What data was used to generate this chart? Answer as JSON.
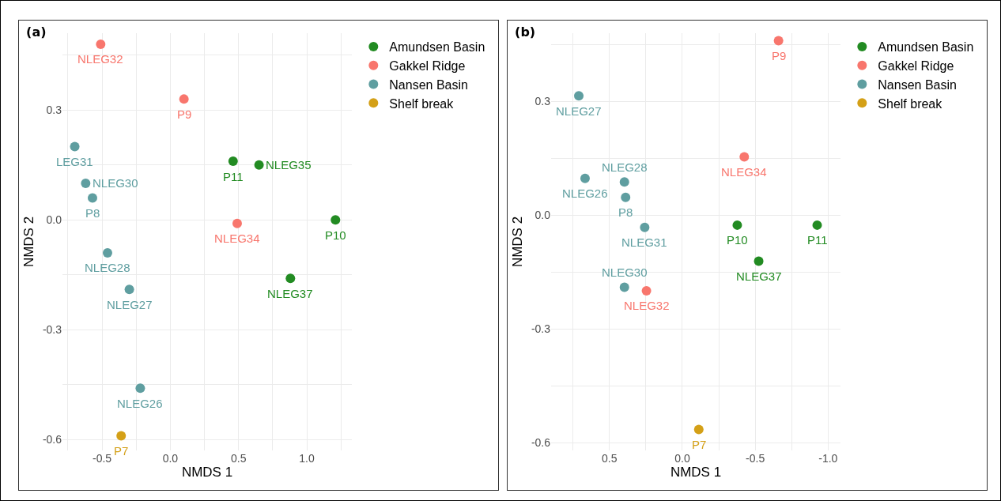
{
  "chart_data": [
    {
      "type": "scatter",
      "title": "(a)",
      "xlabel": "NMDS 1",
      "ylabel": "NMDS 2",
      "legend": "top right",
      "grid": true,
      "marker": "circle",
      "xlim": [
        -0.79,
        1.33
      ],
      "ylim": [
        -0.63,
        0.51
      ],
      "xticks": [
        {
          "value": -0.75,
          "label": null
        },
        {
          "value": -0.5,
          "label": "-0.5"
        },
        {
          "value": -0.25,
          "label": null
        },
        {
          "value": 0,
          "label": "0.0"
        },
        {
          "value": 0.25,
          "label": null
        },
        {
          "value": 0.5,
          "label": "0.5"
        },
        {
          "value": 0.75,
          "label": null
        },
        {
          "value": 1,
          "label": "1.0"
        },
        {
          "value": 1.25,
          "label": null
        }
      ],
      "yticks": [
        {
          "value": -0.6,
          "label": "-0.6"
        },
        {
          "value": -0.45,
          "label": null
        },
        {
          "value": -0.3,
          "label": "-0.3"
        },
        {
          "value": -0.15,
          "label": null
        },
        {
          "value": 0,
          "label": "0.0"
        },
        {
          "value": 0.15,
          "label": null
        },
        {
          "value": 0.3,
          "label": "0.3"
        },
        {
          "value": 0.45,
          "label": null
        }
      ],
      "series": [
        {
          "name": "Amundsen Basin",
          "color": "#228b22",
          "x": [
            0.46,
            0.65,
            1.21,
            0.88
          ],
          "values": [
            0.16,
            0.15,
            0.0,
            -0.16
          ]
        },
        {
          "name": "Gakkel Ridge",
          "color": "#f8766d",
          "x": [
            -0.51,
            0.1,
            0.49
          ],
          "values": [
            0.48,
            0.33,
            -0.01
          ]
        },
        {
          "name": "Nansen Basin",
          "color": "#5f9ea0",
          "x": [
            -0.7,
            -0.62,
            -0.57,
            -0.46,
            -0.3,
            -0.22
          ],
          "values": [
            0.2,
            0.1,
            0.06,
            -0.09,
            -0.19,
            -0.46
          ]
        },
        {
          "name": "Shelf break",
          "color": "#d4a017",
          "x": [
            -0.36
          ],
          "values": [
            -0.59
          ]
        }
      ],
      "annotations": [
        {
          "text": "P11",
          "x": 0.46,
          "y": 0.16
        },
        {
          "text": "NLEG35",
          "x": 0.65,
          "y": 0.15
        },
        {
          "text": "P10",
          "x": 1.21,
          "y": 0.0
        },
        {
          "text": "NLEG37",
          "x": 0.88,
          "y": -0.16
        },
        {
          "text": "NLEG32",
          "x": -0.51,
          "y": 0.48
        },
        {
          "text": "P9",
          "x": 0.1,
          "y": 0.33
        },
        {
          "text": "NLEG34",
          "x": 0.49,
          "y": -0.01
        },
        {
          "text": "LEG31",
          "x": -0.7,
          "y": 0.2
        },
        {
          "text": "NLEG30",
          "x": -0.62,
          "y": 0.1
        },
        {
          "text": "P8",
          "x": -0.57,
          "y": 0.06
        },
        {
          "text": "NLEG28",
          "x": -0.46,
          "y": -0.09
        },
        {
          "text": "NLEG27",
          "x": -0.3,
          "y": -0.19
        },
        {
          "text": "NLEG26",
          "x": -0.22,
          "y": -0.46
        },
        {
          "text": "P7",
          "x": -0.36,
          "y": -0.59
        }
      ]
    },
    {
      "type": "scatter",
      "title": "(b)",
      "xlabel": "NMDS 1",
      "ylabel": "NMDS 2",
      "legend": "top right",
      "grid": true,
      "marker": "circle",
      "xlim": [
        0.9,
        -1.085
      ],
      "ylim": [
        -0.62,
        0.48
      ],
      "xticks": [
        {
          "value": 0.75,
          "label": null
        },
        {
          "value": 0.5,
          "label": "0.5"
        },
        {
          "value": 0.25,
          "label": null
        },
        {
          "value": 0,
          "label": "0.0"
        },
        {
          "value": -0.25,
          "label": null
        },
        {
          "value": -0.5,
          "label": "-0.5"
        },
        {
          "value": -0.75,
          "label": null
        },
        {
          "value": -1,
          "label": "-1.0"
        }
      ],
      "yticks": [
        {
          "value": -0.6,
          "label": "-0.6"
        },
        {
          "value": -0.45,
          "label": null
        },
        {
          "value": -0.3,
          "label": "-0.3"
        },
        {
          "value": -0.15,
          "label": null
        },
        {
          "value": 0,
          "label": "0.0"
        },
        {
          "value": 0.15,
          "label": null
        },
        {
          "value": 0.3,
          "label": "0.3"
        },
        {
          "value": 0.45,
          "label": null
        }
      ],
      "series": [
        {
          "name": "Amundsen Basin",
          "color": "#228b22",
          "x": [
            -0.377,
            -0.925,
            -0.524
          ],
          "values": [
            -0.026,
            -0.026,
            -0.121
          ]
        },
        {
          "name": "Gakkel Ridge",
          "color": "#f8766d",
          "x": [
            -0.66,
            -0.425,
            0.246
          ],
          "values": [
            0.46,
            0.154,
            -0.199
          ]
        },
        {
          "name": "Nansen Basin",
          "color": "#5f9ea0",
          "x": [
            0.71,
            0.667,
            0.397,
            0.389,
            0.258,
            0.397
          ],
          "values": [
            0.315,
            0.097,
            0.088,
            0.047,
            -0.032,
            -0.19
          ]
        },
        {
          "name": "Shelf break",
          "color": "#d4a017",
          "x": [
            -0.113
          ],
          "values": [
            -0.565
          ]
        }
      ],
      "annotations": [
        {
          "text": "P10",
          "x": -0.377,
          "y": -0.026
        },
        {
          "text": "P11",
          "x": -0.925,
          "y": -0.026
        },
        {
          "text": "NLEG37",
          "x": -0.524,
          "y": -0.121
        },
        {
          "text": "P9",
          "x": -0.66,
          "y": 0.46
        },
        {
          "text": "NLEG34",
          "x": -0.425,
          "y": 0.154
        },
        {
          "text": "NLEG32",
          "x": 0.246,
          "y": -0.199
        },
        {
          "text": "NLEG27",
          "x": 0.71,
          "y": 0.315
        },
        {
          "text": "NLEG26",
          "x": 0.667,
          "y": 0.097
        },
        {
          "text": "NLEG28",
          "x": 0.397,
          "y": 0.088
        },
        {
          "text": "P8",
          "x": 0.389,
          "y": 0.047
        },
        {
          "text": "NLEG31",
          "x": 0.258,
          "y": -0.032
        },
        {
          "text": "NLEG30",
          "x": 0.397,
          "y": -0.19
        },
        {
          "text": "P7",
          "x": -0.113,
          "y": -0.565
        }
      ]
    }
  ]
}
